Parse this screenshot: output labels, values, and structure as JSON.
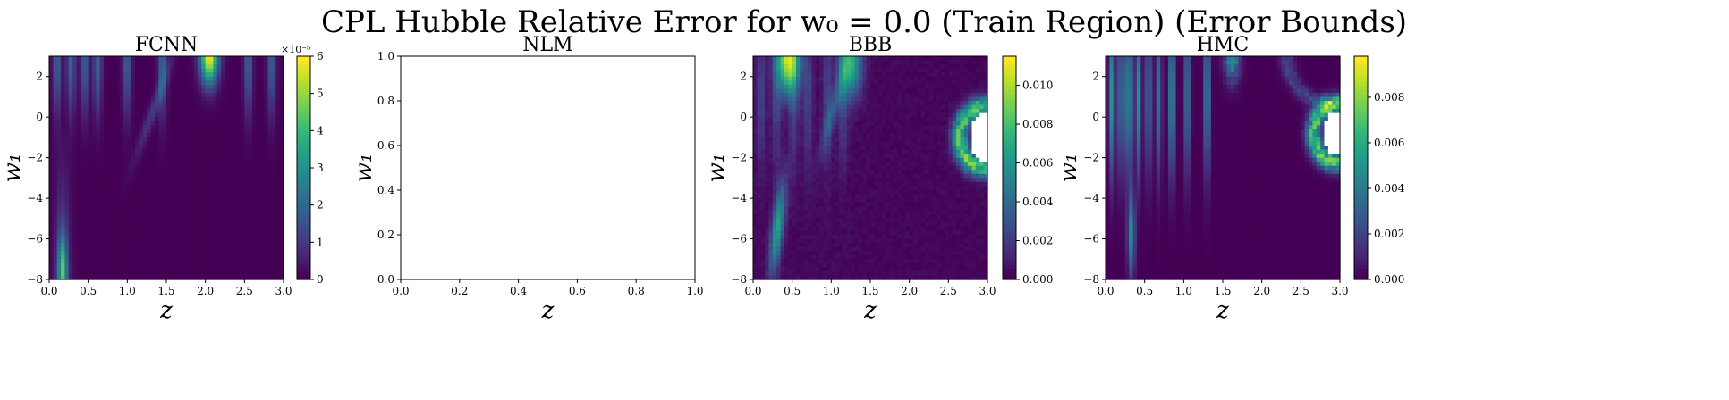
{
  "figure": {
    "suptitle": "CPL Hubble Relative Error for w₀ = 0.0 (Train Region) (Error Bounds)"
  },
  "chart_data": [
    {
      "type": "heatmap",
      "title": "FCNN",
      "xlabel": "z",
      "ylabel": "w₁",
      "xlim": [
        0.0,
        3.0
      ],
      "ylim": [
        -8,
        3
      ],
      "xticks": [
        "0.0",
        "0.5",
        "1.0",
        "1.5",
        "2.0",
        "2.5",
        "3.0"
      ],
      "yticks": [
        "2",
        "0",
        "−2",
        "−4",
        "−6",
        "−8"
      ],
      "colorbar": {
        "range": [
          0,
          6
        ],
        "ticks": [
          "0",
          "1",
          "2",
          "3",
          "4",
          "5",
          "6"
        ],
        "exponent_label": "×10⁻⁵"
      },
      "colormap": "viridis",
      "grid": false
    },
    {
      "type": "heatmap",
      "title": "NLM",
      "xlabel": "z",
      "ylabel": "w₁",
      "xlim": [
        0.0,
        1.0
      ],
      "ylim": [
        0.0,
        1.0
      ],
      "xticks": [
        "0.0",
        "0.2",
        "0.4",
        "0.6",
        "0.8",
        "1.0"
      ],
      "yticks": [
        "1.0",
        "0.8",
        "0.6",
        "0.4",
        "0.2",
        "0.0"
      ],
      "colorbar": null,
      "empty": true
    },
    {
      "type": "heatmap",
      "title": "BBB",
      "xlabel": "z",
      "ylabel": "w₁",
      "xlim": [
        0.0,
        3.0
      ],
      "ylim": [
        -8,
        3
      ],
      "xticks": [
        "0.0",
        "0.5",
        "1.0",
        "1.5",
        "2.0",
        "2.5",
        "3.0"
      ],
      "yticks": [
        "2",
        "0",
        "−2",
        "−4",
        "−6",
        "−8"
      ],
      "colorbar": {
        "range": [
          0,
          0.0115
        ],
        "ticks": [
          "0.000",
          "0.002",
          "0.004",
          "0.006",
          "0.008",
          "0.010"
        ],
        "tick_values": [
          0.0,
          0.002,
          0.004,
          0.006,
          0.008,
          0.01
        ]
      },
      "colormap": "viridis",
      "white_region": "top-right near z≈2.9, w₁≈−1",
      "grid": false
    },
    {
      "type": "heatmap",
      "title": "HMC",
      "xlabel": "z",
      "ylabel": "w₁",
      "xlim": [
        0.0,
        3.0
      ],
      "ylim": [
        -8,
        3
      ],
      "xticks": [
        "0.0",
        "0.5",
        "1.0",
        "1.5",
        "2.0",
        "2.5",
        "3.0"
      ],
      "yticks": [
        "2",
        "0",
        "−2",
        "−4",
        "−6",
        "−8"
      ],
      "colorbar": {
        "range": [
          0,
          0.0098
        ],
        "ticks": [
          "0.000",
          "0.002",
          "0.004",
          "0.006",
          "0.008"
        ],
        "tick_values": [
          0.0,
          0.002,
          0.004,
          0.006,
          0.008
        ]
      },
      "colormap": "viridis",
      "white_region": "top-right near z≈2.9, w₁≈−1",
      "grid": false
    }
  ]
}
